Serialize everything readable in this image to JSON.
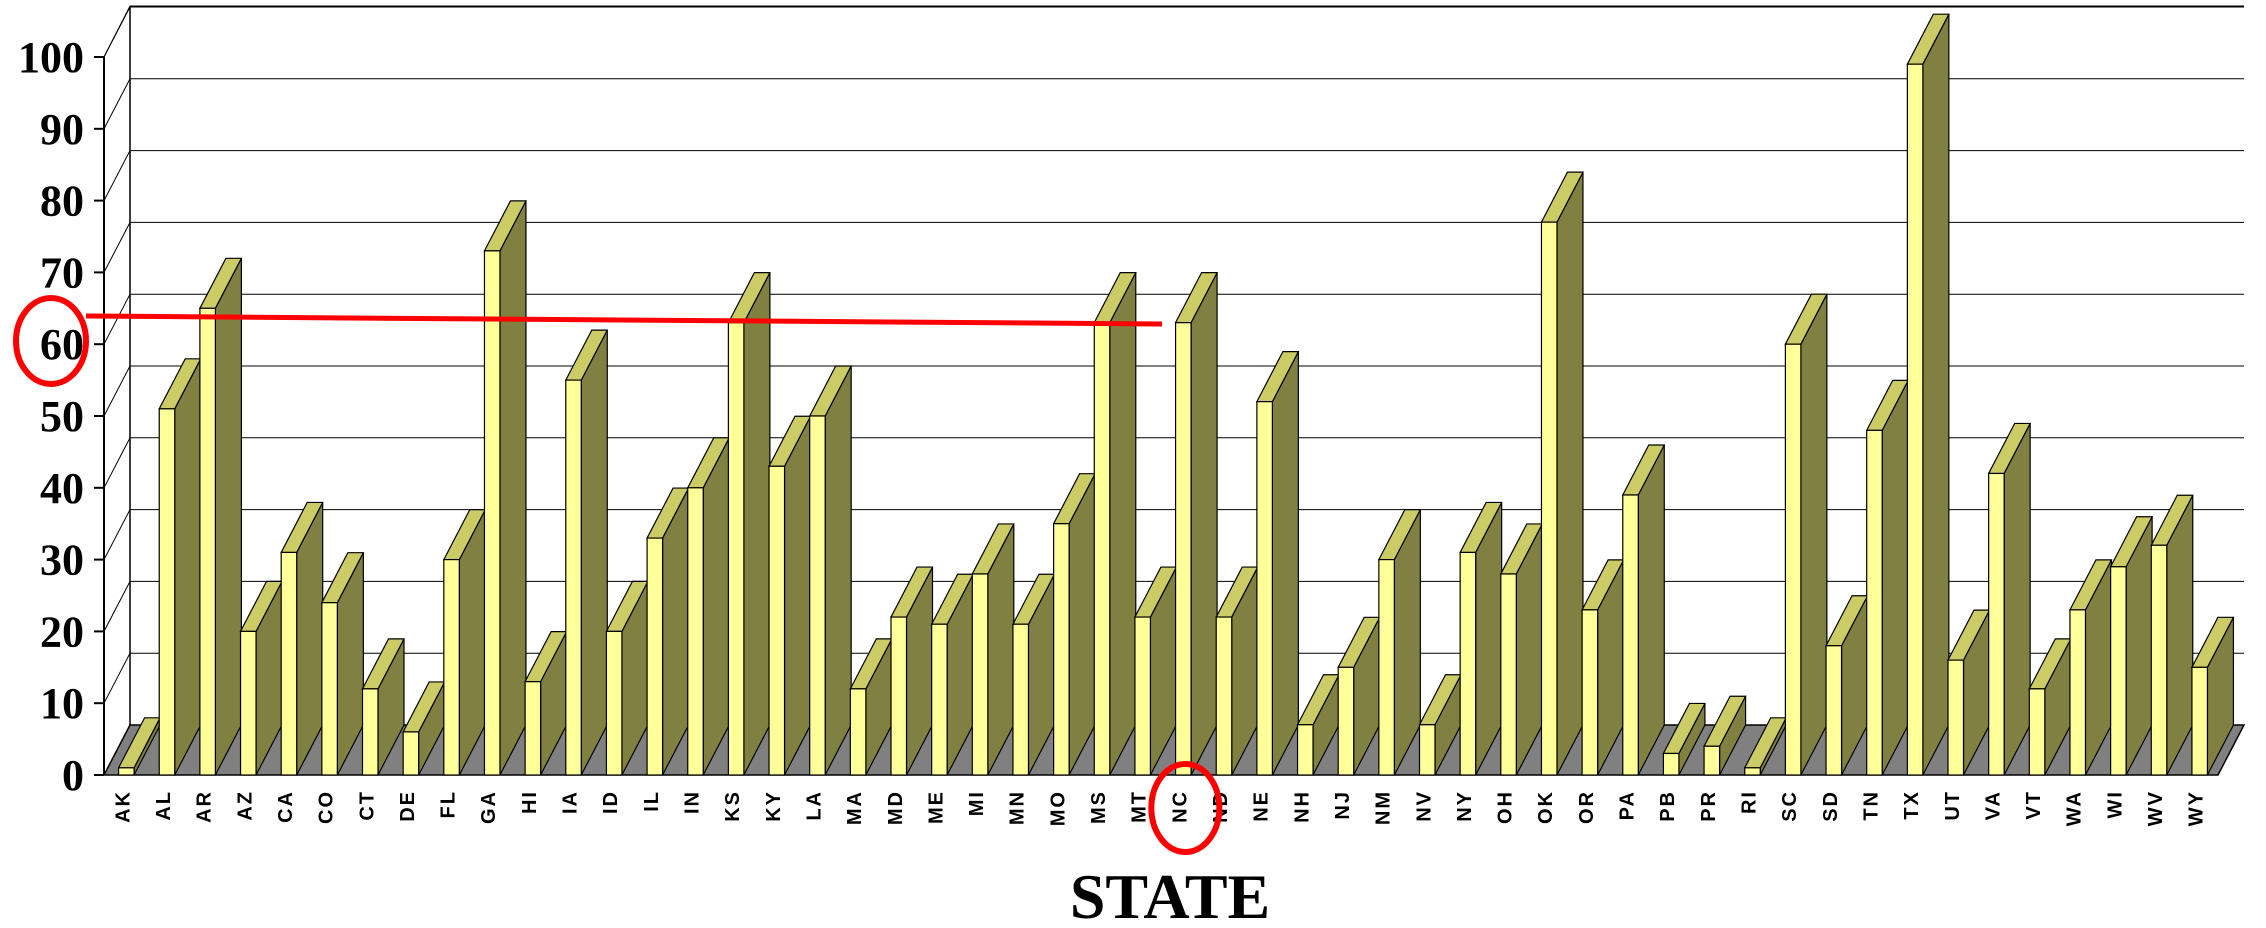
{
  "chart_data": {
    "type": "bar",
    "title": "",
    "xlabel": "STATE",
    "ylabel": "",
    "ylim": [
      0,
      100
    ],
    "yticks": [
      "0",
      "10",
      "20",
      "30",
      "40",
      "50",
      "60",
      "70",
      "80",
      "90",
      "100"
    ],
    "grid": true,
    "three_d": true,
    "categories": [
      "AK",
      "AL",
      "AR",
      "AZ",
      "CA",
      "CO",
      "CT",
      "DE",
      "FL",
      "GA",
      "HI",
      "IA",
      "ID",
      "IL",
      "IN",
      "KS",
      "KY",
      "LA",
      "MA",
      "MD",
      "ME",
      "MI",
      "MN",
      "MO",
      "MS",
      "MT",
      "NC",
      "ND",
      "NE",
      "NH",
      "NJ",
      "NM",
      "NV",
      "NY",
      "OH",
      "OK",
      "OR",
      "PA",
      "PB",
      "PR",
      "RI",
      "SC",
      "SD",
      "TN",
      "TX",
      "UT",
      "VA",
      "VT",
      "WA",
      "WI",
      "WV",
      "WY"
    ],
    "values": [
      1,
      51,
      65,
      20,
      31,
      24,
      12,
      6,
      30,
      73,
      13,
      55,
      20,
      33,
      40,
      63,
      43,
      50,
      12,
      22,
      21,
      28,
      21,
      35,
      63,
      22,
      63,
      22,
      52,
      7,
      15,
      30,
      7,
      31,
      28,
      77,
      23,
      39,
      3,
      4,
      1,
      60,
      18,
      48,
      99,
      16,
      42,
      12,
      23,
      29,
      32,
      15
    ],
    "annotations": [
      {
        "type": "reference-line",
        "y": 62,
        "from": "y-axis",
        "to": "MS",
        "color": "#ff0000"
      },
      {
        "type": "circle",
        "target": "ytick-60",
        "color": "#ff0000"
      },
      {
        "type": "circle",
        "target": "NC",
        "color": "#ff0000"
      }
    ],
    "colors": {
      "bar_front": "#ffff99",
      "bar_top": "#cccc66",
      "bar_side": "#808040",
      "floor": "#808080",
      "highlight": "#ff0000"
    }
  }
}
